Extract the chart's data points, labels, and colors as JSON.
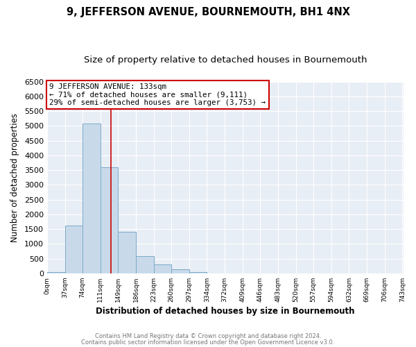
{
  "title": "9, JEFFERSON AVENUE, BOURNEMOUTH, BH1 4NX",
  "subtitle": "Size of property relative to detached houses in Bournemouth",
  "xlabel": "Distribution of detached houses by size in Bournemouth",
  "ylabel": "Number of detached properties",
  "bin_labels": [
    "0sqm",
    "37sqm",
    "74sqm",
    "111sqm",
    "149sqm",
    "186sqm",
    "223sqm",
    "260sqm",
    "297sqm",
    "334sqm",
    "372sqm",
    "409sqm",
    "446sqm",
    "483sqm",
    "520sqm",
    "557sqm",
    "594sqm",
    "632sqm",
    "669sqm",
    "706sqm",
    "743sqm"
  ],
  "bar_values": [
    50,
    1620,
    5080,
    3600,
    1420,
    580,
    295,
    140,
    50,
    5,
    0,
    0,
    0,
    0,
    0,
    0,
    0,
    0,
    0,
    0
  ],
  "bar_color": "#c8daea",
  "bar_edge_color": "#7aaac8",
  "ylim": [
    0,
    6500
  ],
  "yticks": [
    0,
    500,
    1000,
    1500,
    2000,
    2500,
    3000,
    3500,
    4000,
    4500,
    5000,
    5500,
    6000,
    6500
  ],
  "property_line_x": 133,
  "annotation_title": "9 JEFFERSON AVENUE: 133sqm",
  "annotation_line1": "← 71% of detached houses are smaller (9,111)",
  "annotation_line2": "29% of semi-detached houses are larger (3,753) →",
  "annotation_box_color": "#ffffff",
  "annotation_box_edge_color": "#cc0000",
  "property_line_color": "#cc0000",
  "footnote1": "Contains HM Land Registry data © Crown copyright and database right 2024.",
  "footnote2": "Contains public sector information licensed under the Open Government Licence v3.0.",
  "background_color": "#ffffff",
  "plot_background_color": "#e8eef5",
  "grid_color": "#ffffff",
  "title_fontsize": 10.5,
  "subtitle_fontsize": 9.5,
  "ylabel_text": "Number of detached properties"
}
